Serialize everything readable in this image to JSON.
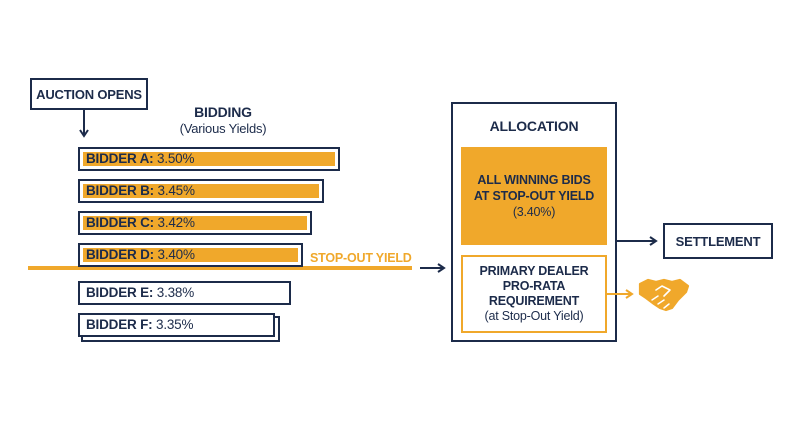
{
  "auction_opens": "AUCTION OPENS",
  "bidding": {
    "title": "BIDDING",
    "subtitle": "(Various Yields)"
  },
  "bidders": [
    {
      "name": "BIDDER A:",
      "yield": "3.50%",
      "winning": true
    },
    {
      "name": "BIDDER B:",
      "yield": "3.45%",
      "winning": true
    },
    {
      "name": "BIDDER C:",
      "yield": "3.42%",
      "winning": true
    },
    {
      "name": "BIDDER D:",
      "yield": "3.40%",
      "winning": true
    },
    {
      "name": "BIDDER E:",
      "yield": "3.38%",
      "winning": false
    },
    {
      "name": "BIDDER F:",
      "yield": "3.35%",
      "winning": false
    }
  ],
  "stop_out_label": "STOP-OUT YIELD",
  "allocation": {
    "title": "ALLOCATION",
    "winning_bids": {
      "line1": "ALL WINNING BIDS",
      "line2": "AT STOP-OUT YIELD",
      "line3": "(3.40%)"
    },
    "primary_dealer": {
      "line1": "PRIMARY DEALER",
      "line2": "PRO-RATA",
      "line3": "REQUIREMENT",
      "line4": "(at Stop-Out Yield)"
    }
  },
  "settlement": "SETTLEMENT",
  "colors": {
    "navy": "#1c2b4a",
    "gold": "#f0a82b"
  },
  "icons": {
    "agreement": "handshake-icon"
  }
}
